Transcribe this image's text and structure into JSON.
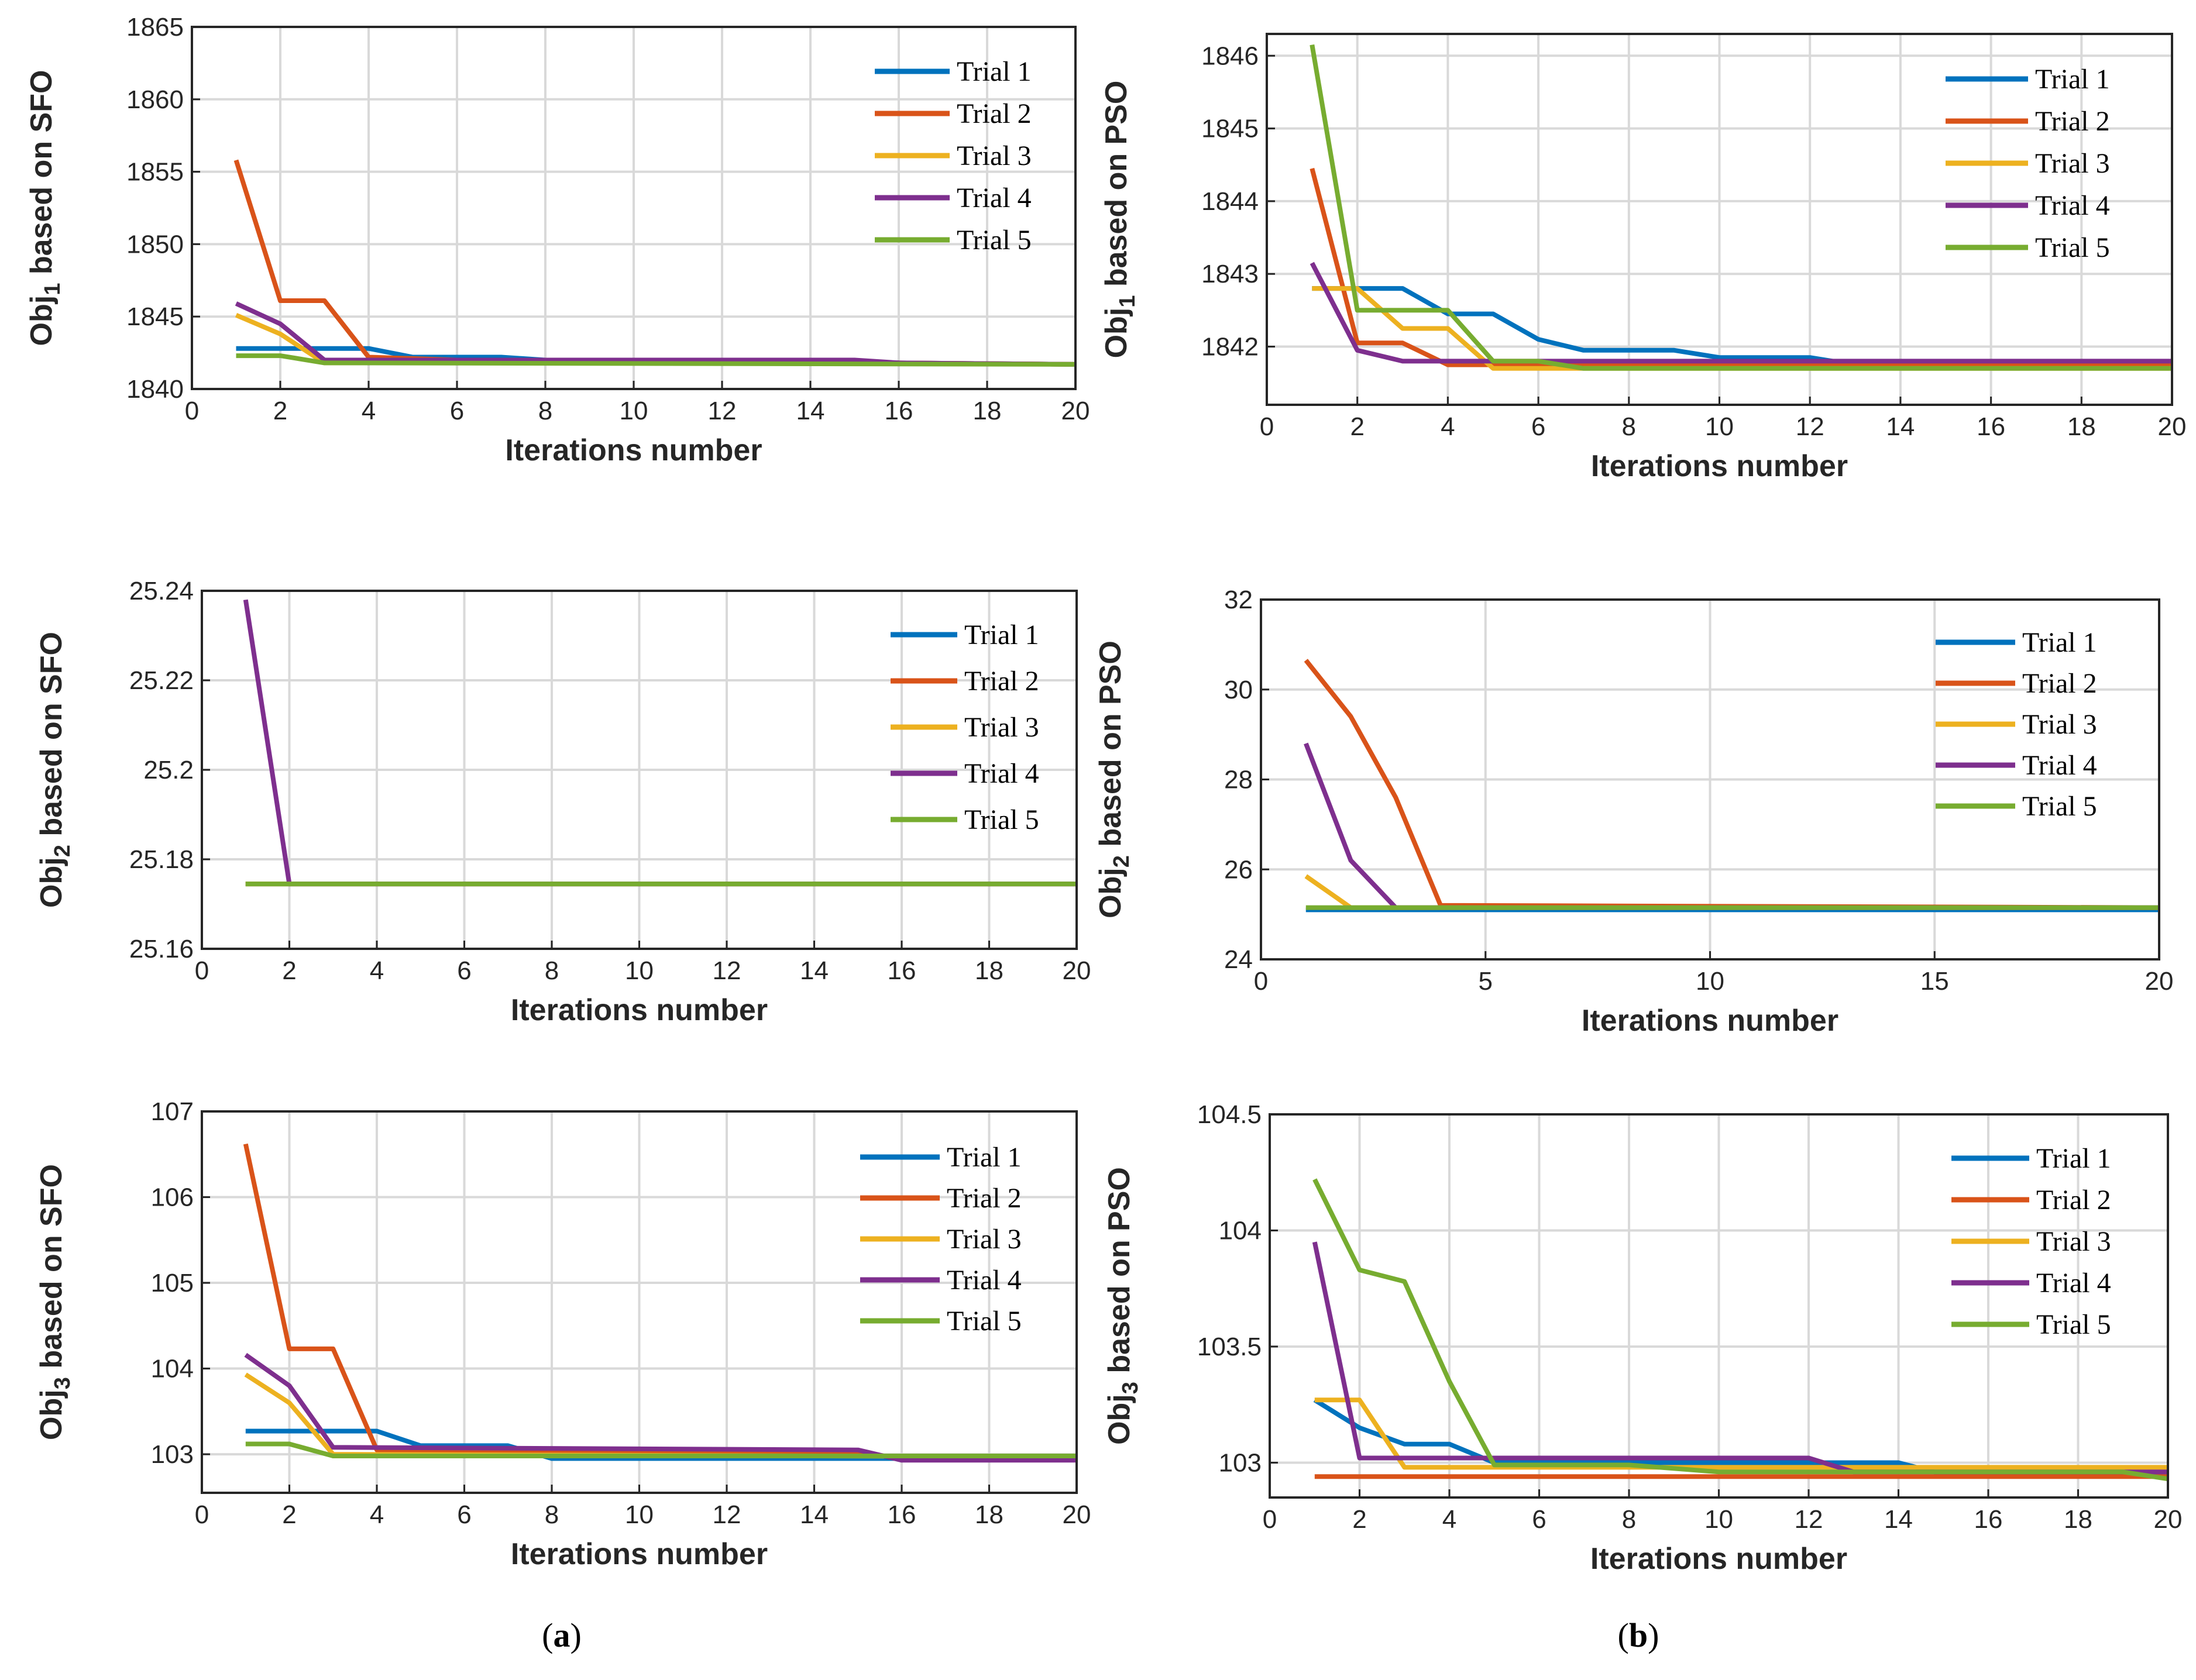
{
  "colors": {
    "Trial 1": "#0072BD",
    "Trial 2": "#D95319",
    "Trial 3": "#EDB120",
    "Trial 4": "#7E2F8E",
    "Trial 5": "#77AC30",
    "grid": "#d9d9d9",
    "axis": "#262626"
  },
  "captions": {
    "a": "a",
    "b": "b"
  },
  "chart_data": [
    {
      "type": "line",
      "panel": "top-left",
      "ylabel_main": "Obj",
      "ylabel_sub": "1",
      "ylabel_rest": " based on SFO",
      "xlabel": "Iterations number",
      "xlim": [
        0,
        20
      ],
      "ylim": [
        1840,
        1865
      ],
      "xticks": [
        "0",
        "2",
        "4",
        "6",
        "8",
        "10",
        "12",
        "14",
        "16",
        "18",
        "20"
      ],
      "yticks": [
        "1840",
        "1845",
        "1850",
        "1855",
        "1860",
        "1865"
      ],
      "legend": "top-right",
      "series": [
        {
          "name": "Trial 1",
          "points": [
            [
              1,
              1842.8
            ],
            [
              2,
              1842.8
            ],
            [
              3,
              1842.8
            ],
            [
              4,
              1842.8
            ],
            [
              5,
              1842.2
            ],
            [
              7,
              1842.2
            ],
            [
              8,
              1842
            ],
            [
              13,
              1842
            ],
            [
              16,
              1841.8
            ],
            [
              20,
              1841.7
            ]
          ]
        },
        {
          "name": "Trial 2",
          "points": [
            [
              1,
              1855.8
            ],
            [
              2,
              1846.1
            ],
            [
              3,
              1846.1
            ],
            [
              4,
              1842.2
            ],
            [
              6,
              1842
            ],
            [
              13,
              1842
            ],
            [
              16,
              1841.8
            ],
            [
              20,
              1841.7
            ]
          ]
        },
        {
          "name": "Trial 3",
          "points": [
            [
              1,
              1845.1
            ],
            [
              2,
              1843.8
            ],
            [
              3,
              1841.8
            ],
            [
              16,
              1841.8
            ],
            [
              20,
              1841.7
            ]
          ]
        },
        {
          "name": "Trial 4",
          "points": [
            [
              1,
              1845.9
            ],
            [
              2,
              1844.5
            ],
            [
              3,
              1842
            ],
            [
              15,
              1842
            ],
            [
              16,
              1841.8
            ],
            [
              20,
              1841.7
            ]
          ]
        },
        {
          "name": "Trial 5",
          "points": [
            [
              1,
              1842.3
            ],
            [
              2,
              1842.3
            ],
            [
              3,
              1841.8
            ],
            [
              20,
              1841.7
            ]
          ]
        }
      ]
    },
    {
      "type": "line",
      "panel": "top-right",
      "ylabel_main": "Obj",
      "ylabel_sub": "1",
      "ylabel_rest": " based on PSO",
      "xlabel": "Iterations number",
      "xlim": [
        0,
        20
      ],
      "ylim": [
        1841.2,
        1846.3
      ],
      "xticks": [
        "0",
        "2",
        "4",
        "6",
        "8",
        "10",
        "12",
        "14",
        "16",
        "18",
        "20"
      ],
      "yticks": [
        "1842",
        "1843",
        "1844",
        "1845",
        "1846"
      ],
      "legend": "top-right",
      "series": [
        {
          "name": "Trial 1",
          "points": [
            [
              1,
              1842.8
            ],
            [
              2,
              1842.8
            ],
            [
              3,
              1842.8
            ],
            [
              4,
              1842.45
            ],
            [
              5,
              1842.45
            ],
            [
              6,
              1842.1
            ],
            [
              7,
              1841.95
            ],
            [
              9,
              1841.95
            ],
            [
              10,
              1841.85
            ],
            [
              12,
              1841.85
            ],
            [
              13,
              1841.75
            ],
            [
              20,
              1841.75
            ]
          ]
        },
        {
          "name": "Trial 2",
          "points": [
            [
              1,
              1844.45
            ],
            [
              2,
              1842.05
            ],
            [
              3,
              1842.05
            ],
            [
              4,
              1841.75
            ],
            [
              20,
              1841.75
            ]
          ]
        },
        {
          "name": "Trial 3",
          "points": [
            [
              1,
              1842.8
            ],
            [
              2,
              1842.8
            ],
            [
              3,
              1842.25
            ],
            [
              4,
              1842.25
            ],
            [
              5,
              1841.7
            ],
            [
              20,
              1841.7
            ]
          ]
        },
        {
          "name": "Trial 4",
          "points": [
            [
              1,
              1843.15
            ],
            [
              2,
              1841.95
            ],
            [
              3,
              1841.8
            ],
            [
              20,
              1841.8
            ]
          ]
        },
        {
          "name": "Trial 5",
          "points": [
            [
              1,
              1846.15
            ],
            [
              2,
              1842.5
            ],
            [
              4,
              1842.5
            ],
            [
              5,
              1841.8
            ],
            [
              6,
              1841.8
            ],
            [
              7,
              1841.7
            ],
            [
              20,
              1841.7
            ]
          ]
        }
      ]
    },
    {
      "type": "line",
      "panel": "middle-left",
      "ylabel_main": "Obj",
      "ylabel_sub": "2",
      "ylabel_rest": " based on SFO",
      "xlabel": "Iterations number",
      "xlim": [
        0,
        20
      ],
      "ylim": [
        25.16,
        25.24
      ],
      "xticks": [
        "0",
        "2",
        "4",
        "6",
        "8",
        "10",
        "12",
        "14",
        "16",
        "18",
        "20"
      ],
      "yticks": [
        "25.16",
        "25.18",
        "25.2",
        "25.22",
        "25.24"
      ],
      "legend": "top-right",
      "series": [
        {
          "name": "Trial 1",
          "points": [
            [
              1,
              25.1745
            ],
            [
              20,
              25.1745
            ]
          ]
        },
        {
          "name": "Trial 2",
          "points": [
            [
              1,
              25.1745
            ],
            [
              20,
              25.1745
            ]
          ]
        },
        {
          "name": "Trial 3",
          "points": [
            [
              1,
              25.1745
            ],
            [
              20,
              25.1745
            ]
          ]
        },
        {
          "name": "Trial 4",
          "points": [
            [
              1,
              25.238
            ],
            [
              2,
              25.1745
            ],
            [
              20,
              25.1745
            ]
          ]
        },
        {
          "name": "Trial 5",
          "points": [
            [
              1,
              25.1745
            ],
            [
              20,
              25.1745
            ]
          ]
        }
      ]
    },
    {
      "type": "line",
      "panel": "middle-right",
      "ylabel_main": "Obj",
      "ylabel_sub": "2",
      "ylabel_rest": " based on PSO",
      "xlabel": "Iterations number",
      "xlim": [
        0,
        20
      ],
      "ylim": [
        24,
        32
      ],
      "xticks": [
        "0",
        "5",
        "10",
        "15",
        "20"
      ],
      "yticks": [
        "24",
        "26",
        "28",
        "30",
        "32"
      ],
      "legend": "top-right",
      "series": [
        {
          "name": "Trial 1",
          "points": [
            [
              1,
              25.1
            ],
            [
              20,
              25.1
            ]
          ]
        },
        {
          "name": "Trial 2",
          "points": [
            [
              1,
              30.65
            ],
            [
              2,
              29.4
            ],
            [
              3,
              27.6
            ],
            [
              4,
              25.2
            ],
            [
              20,
              25.15
            ]
          ]
        },
        {
          "name": "Trial 3",
          "points": [
            [
              1,
              25.85
            ],
            [
              2,
              25.15
            ],
            [
              20,
              25.15
            ]
          ]
        },
        {
          "name": "Trial 4",
          "points": [
            [
              1,
              28.8
            ],
            [
              2,
              26.2
            ],
            [
              3,
              25.15
            ],
            [
              20,
              25.15
            ]
          ]
        },
        {
          "name": "Trial 5",
          "points": [
            [
              1,
              25.15
            ],
            [
              20,
              25.15
            ]
          ]
        }
      ]
    },
    {
      "type": "line",
      "panel": "bottom-left",
      "ylabel_main": "Obj",
      "ylabel_sub": "3",
      "ylabel_rest": " based on SFO",
      "xlabel": "Iterations number",
      "xlim": [
        0,
        20
      ],
      "ylim": [
        102.55,
        107
      ],
      "xticks": [
        "0",
        "2",
        "4",
        "6",
        "8",
        "10",
        "12",
        "14",
        "16",
        "18",
        "20"
      ],
      "yticks": [
        "103",
        "104",
        "105",
        "106",
        "107"
      ],
      "legend": "top-right",
      "series": [
        {
          "name": "Trial 1",
          "points": [
            [
              1,
              103.27
            ],
            [
              4,
              103.27
            ],
            [
              5,
              103.1
            ],
            [
              7,
              103.1
            ],
            [
              8,
              102.95
            ],
            [
              20,
              102.95
            ]
          ]
        },
        {
          "name": "Trial 2",
          "points": [
            [
              1,
              106.62
            ],
            [
              2,
              104.23
            ],
            [
              3,
              104.23
            ],
            [
              4,
              103.05
            ],
            [
              15,
              103.02
            ],
            [
              16,
              102.95
            ],
            [
              20,
              102.95
            ]
          ]
        },
        {
          "name": "Trial 3",
          "points": [
            [
              1,
              103.93
            ],
            [
              2,
              103.6
            ],
            [
              3,
              103
            ],
            [
              20,
              102.97
            ]
          ]
        },
        {
          "name": "Trial 4",
          "points": [
            [
              1,
              104.16
            ],
            [
              2,
              103.8
            ],
            [
              3,
              103.08
            ],
            [
              15,
              103.05
            ],
            [
              16,
              102.93
            ],
            [
              20,
              102.93
            ]
          ]
        },
        {
          "name": "Trial 5",
          "points": [
            [
              1,
              103.12
            ],
            [
              2,
              103.12
            ],
            [
              3,
              102.98
            ],
            [
              20,
              102.98
            ]
          ]
        }
      ]
    },
    {
      "type": "line",
      "panel": "bottom-right",
      "ylabel_main": "Obj",
      "ylabel_sub": "3",
      "ylabel_rest": " based on PSO",
      "xlabel": "Iterations number",
      "xlim": [
        0,
        20
      ],
      "ylim": [
        102.85,
        104.5
      ],
      "xticks": [
        "0",
        "2",
        "4",
        "6",
        "8",
        "10",
        "12",
        "14",
        "16",
        "18",
        "20"
      ],
      "yticks": [
        "103",
        "103.5",
        "104",
        "104.5"
      ],
      "legend": "top-right",
      "series": [
        {
          "name": "Trial 1",
          "points": [
            [
              1,
              103.27
            ],
            [
              2,
              103.15
            ],
            [
              3,
              103.08
            ],
            [
              4,
              103.08
            ],
            [
              5,
              103
            ],
            [
              14,
              103
            ],
            [
              15,
              102.95
            ],
            [
              20,
              102.95
            ]
          ]
        },
        {
          "name": "Trial 2",
          "points": [
            [
              1,
              102.94
            ],
            [
              20,
              102.94
            ]
          ]
        },
        {
          "name": "Trial 3",
          "points": [
            [
              1,
              103.27
            ],
            [
              2,
              103.27
            ],
            [
              3,
              102.98
            ],
            [
              20,
              102.98
            ]
          ]
        },
        {
          "name": "Trial 4",
          "points": [
            [
              1,
              103.95
            ],
            [
              2,
              103.02
            ],
            [
              12,
              103.02
            ],
            [
              13,
              102.96
            ],
            [
              20,
              102.96
            ]
          ]
        },
        {
          "name": "Trial 5",
          "points": [
            [
              1,
              104.22
            ],
            [
              2,
              103.83
            ],
            [
              3,
              103.78
            ],
            [
              4,
              103.35
            ],
            [
              5,
              102.99
            ],
            [
              8,
              102.99
            ],
            [
              10,
              102.96
            ],
            [
              19,
              102.96
            ],
            [
              20,
              102.93
            ]
          ]
        }
      ]
    }
  ]
}
